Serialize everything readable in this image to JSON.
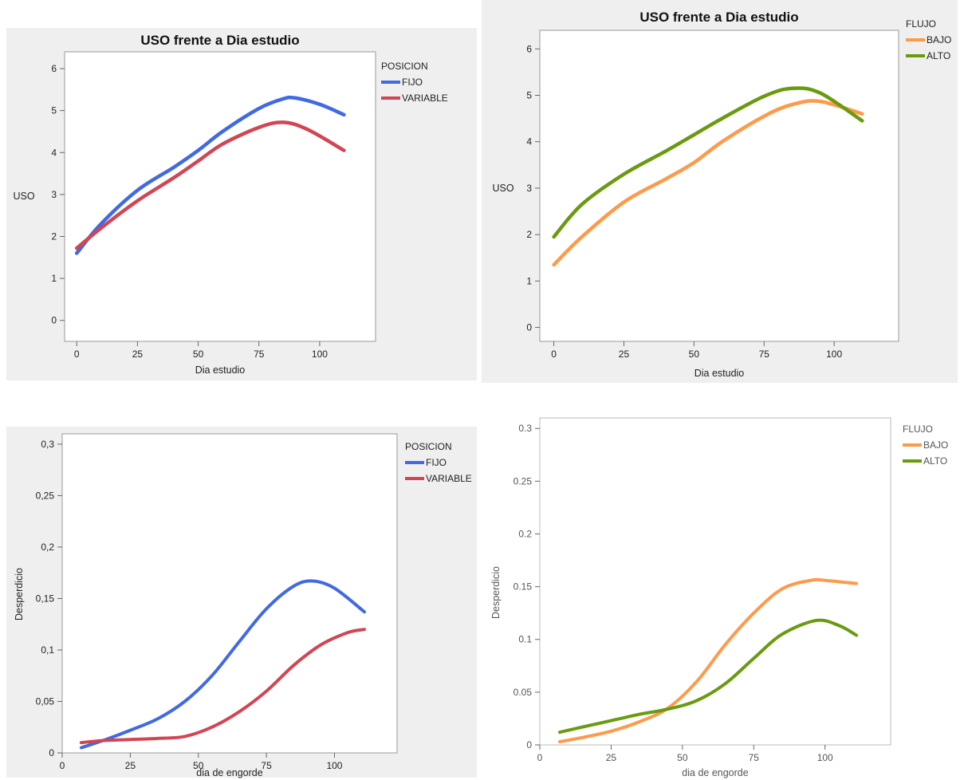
{
  "chart_data": [
    {
      "type": "line",
      "title": "USO frente a Dia estudio",
      "xlabel": "Dia estudio",
      "ylabel": "USO",
      "xlim": [
        -5,
        123
      ],
      "ylim": [
        -0.5,
        6.4
      ],
      "xticks": [
        "0",
        "25",
        "50",
        "75",
        "100"
      ],
      "xtick_values": [
        0,
        25,
        50,
        75,
        100
      ],
      "yticks": [
        "0",
        "1",
        "2",
        "3",
        "4",
        "5",
        "6"
      ],
      "ytick_values": [
        0,
        1,
        2,
        3,
        4,
        5,
        6
      ],
      "legend_title": "POSICION",
      "legend_position": "right",
      "grid": false,
      "series": [
        {
          "name": "FIJO",
          "color": "#4169e1",
          "x": [
            0,
            10,
            25,
            40,
            50,
            60,
            75,
            85,
            90,
            100,
            110
          ],
          "y": [
            1.6,
            2.3,
            3.1,
            3.65,
            4.05,
            4.5,
            5.05,
            5.28,
            5.3,
            5.15,
            4.9
          ]
        },
        {
          "name": "VARIABLE",
          "color": "#d14554",
          "x": [
            0,
            10,
            25,
            40,
            50,
            60,
            75,
            85,
            95,
            110
          ],
          "y": [
            1.72,
            2.2,
            2.85,
            3.4,
            3.8,
            4.2,
            4.6,
            4.72,
            4.55,
            4.05
          ]
        }
      ]
    },
    {
      "type": "line",
      "title": "USO frente a Dia estudio",
      "xlabel": "Dia estudio",
      "ylabel": "USO",
      "xlim": [
        -5,
        123
      ],
      "ylim": [
        -0.3,
        6.4
      ],
      "xticks": [
        "0",
        "25",
        "50",
        "75",
        "100"
      ],
      "xtick_values": [
        0,
        25,
        50,
        75,
        100
      ],
      "yticks": [
        "0",
        "1",
        "2",
        "3",
        "4",
        "5",
        "6"
      ],
      "ytick_values": [
        0,
        1,
        2,
        3,
        4,
        5,
        6
      ],
      "legend_title": "FLUJO",
      "legend_position": "right",
      "grid": false,
      "series": [
        {
          "name": "BAJO",
          "color": "#ff9a4a",
          "x": [
            0,
            10,
            25,
            40,
            50,
            60,
            75,
            85,
            95,
            110
          ],
          "y": [
            1.35,
            1.95,
            2.7,
            3.2,
            3.55,
            4.0,
            4.55,
            4.8,
            4.87,
            4.6
          ]
        },
        {
          "name": "ALTO",
          "color": "#6a9a10",
          "x": [
            0,
            10,
            25,
            40,
            50,
            60,
            75,
            85,
            95,
            110
          ],
          "y": [
            1.95,
            2.65,
            3.3,
            3.8,
            4.15,
            4.5,
            4.98,
            5.15,
            5.05,
            4.45
          ]
        }
      ]
    },
    {
      "type": "line",
      "title": "",
      "xlabel": "dia de engorde",
      "ylabel": "Desperdicio",
      "xlim": [
        0,
        123
      ],
      "ylim": [
        0,
        0.31
      ],
      "xticks": [
        "0",
        "25",
        "50",
        "75",
        "100"
      ],
      "xtick_values": [
        0,
        25,
        50,
        75,
        100
      ],
      "yticks": [
        "0",
        "0,05",
        "0,1",
        "0,15",
        "0,2",
        "0,25",
        "0,3"
      ],
      "ytick_values": [
        0,
        0.05,
        0.1,
        0.15,
        0.2,
        0.25,
        0.3
      ],
      "legend_title": "POSICION",
      "legend_position": "right",
      "grid": false,
      "series": [
        {
          "name": "FIJO",
          "color": "#4169e1",
          "x": [
            7,
            15,
            25,
            35,
            45,
            55,
            65,
            75,
            85,
            92,
            100,
            111
          ],
          "y": [
            0.005,
            0.012,
            0.022,
            0.033,
            0.05,
            0.075,
            0.108,
            0.14,
            0.162,
            0.167,
            0.16,
            0.137
          ]
        },
        {
          "name": "VARIABLE",
          "color": "#d14554",
          "x": [
            7,
            15,
            25,
            35,
            45,
            55,
            65,
            75,
            85,
            95,
            105,
            111
          ],
          "y": [
            0.01,
            0.012,
            0.013,
            0.014,
            0.016,
            0.025,
            0.04,
            0.06,
            0.085,
            0.105,
            0.117,
            0.12
          ]
        }
      ]
    },
    {
      "type": "line",
      "title": "",
      "xlabel": "dia de engorde",
      "ylabel": "Desperdicio",
      "xlim": [
        0,
        123
      ],
      "ylim": [
        0,
        0.31
      ],
      "xticks": [
        "0",
        "25",
        "50",
        "75",
        "100"
      ],
      "xtick_values": [
        0,
        25,
        50,
        75,
        100
      ],
      "yticks": [
        "0",
        "0.05",
        "0.1",
        "0.15",
        "0.2",
        "0.25",
        "0.3"
      ],
      "ytick_values": [
        0,
        0.05,
        0.1,
        0.15,
        0.2,
        0.25,
        0.3
      ],
      "legend_title": "FLUJO",
      "legend_position": "right",
      "grid": false,
      "series": [
        {
          "name": "BAJO",
          "color": "#ff9a4a",
          "x": [
            7,
            15,
            25,
            35,
            45,
            55,
            65,
            75,
            85,
            95,
            100,
            111
          ],
          "y": [
            0.003,
            0.007,
            0.013,
            0.022,
            0.035,
            0.06,
            0.095,
            0.125,
            0.148,
            0.156,
            0.156,
            0.153
          ]
        },
        {
          "name": "ALTO",
          "color": "#6a9a10",
          "x": [
            7,
            15,
            25,
            35,
            45,
            55,
            65,
            75,
            85,
            97,
            105,
            111
          ],
          "y": [
            0.012,
            0.017,
            0.023,
            0.029,
            0.034,
            0.042,
            0.058,
            0.082,
            0.105,
            0.118,
            0.113,
            0.104
          ]
        }
      ]
    }
  ]
}
